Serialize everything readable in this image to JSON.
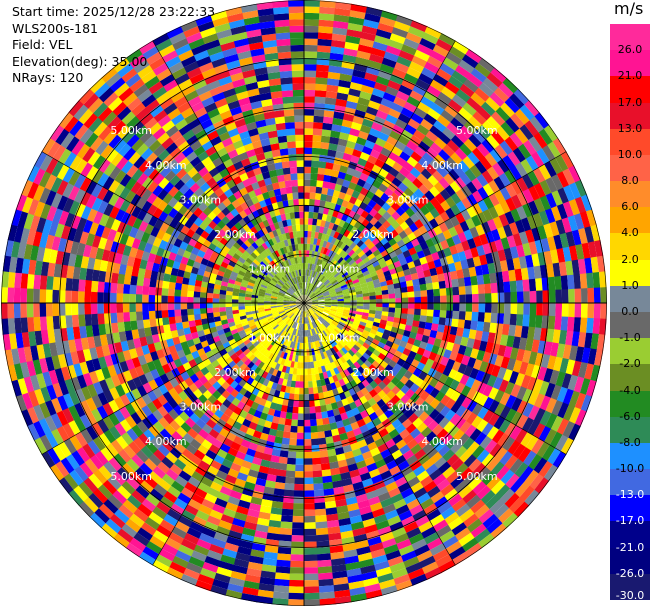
{
  "info": {
    "start_time": "Start time: 2025/12/28 23:22:33",
    "instrument": "WLS200s-181",
    "field": "Field: VEL",
    "elevation": "Elevation(deg): 35.00",
    "nrays": "NRays: 120"
  },
  "colorbar": {
    "unit": "m/s",
    "ticks": [
      "26.0",
      "21.0",
      "17.0",
      "13.0",
      "10.0",
      "8.0",
      "6.0",
      "4.0",
      "2.0",
      "1.0",
      "0.0",
      "-1.0",
      "-2.0",
      "-4.0",
      "-6.0",
      "-8.0",
      "-10.0",
      "-13.0",
      "-17.0",
      "-21.0",
      "-26.0",
      "-30.0"
    ],
    "colors": [
      "#ff2a9b",
      "#ff1493",
      "#ff0000",
      "#e8102a",
      "#ff4a2a",
      "#ff6347",
      "#ff8c2a",
      "#ffa500",
      "#ffd700",
      "#ffff00",
      "#778899",
      "#696969",
      "#9acd32",
      "#6b8e23",
      "#228b22",
      "#2e8b57",
      "#1e90ff",
      "#4169e1",
      "#0000ff",
      "#00008b",
      "#000080",
      "#191970"
    ]
  },
  "chart_data": {
    "type": "heatmap",
    "projection": "polar (PPI)",
    "title": "",
    "field": "VEL",
    "units": "m/s",
    "elevation_deg": 35.0,
    "nrays": 120,
    "range_rings": [
      {
        "label": "1.00km",
        "range_km": 1.0
      },
      {
        "label": "2.00km",
        "range_km": 2.0
      },
      {
        "label": "3.00km",
        "range_km": 3.0
      },
      {
        "label": "4.00km",
        "range_km": 4.0
      },
      {
        "label": "5.00km",
        "range_km": 5.0
      }
    ],
    "max_range_km": 6.2,
    "color_scale_min": -30.0,
    "color_scale_max": 26.0,
    "colorbar_ticks": [
      26.0,
      21.0,
      17.0,
      13.0,
      10.0,
      8.0,
      6.0,
      4.0,
      2.0,
      1.0,
      0.0,
      -1.0,
      -2.0,
      -4.0,
      -6.0,
      -8.0,
      -10.0,
      -13.0,
      -17.0,
      -21.0,
      -26.0,
      -30.0
    ]
  }
}
